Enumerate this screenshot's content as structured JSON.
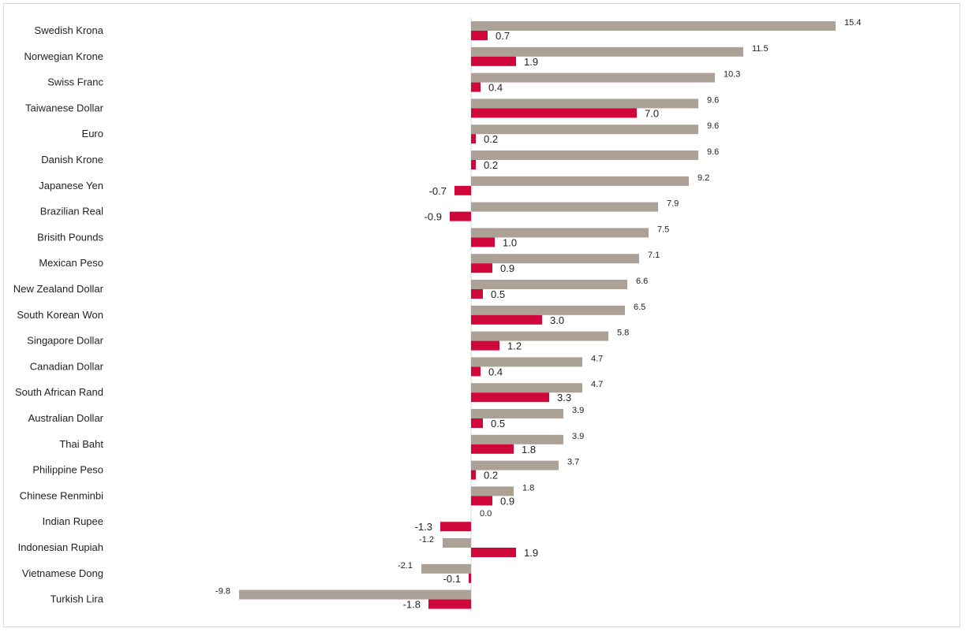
{
  "chart_data": {
    "type": "bar",
    "orientation": "horizontal",
    "title": "",
    "xlabel": "",
    "ylabel": "",
    "grid": false,
    "legend": "none",
    "xlim": [
      -9.8,
      15.4
    ],
    "categories": [
      "Swedish Krona",
      "Norwegian Krone",
      "Swiss Franc",
      "Taiwanese Dollar",
      "Euro",
      "Danish Krone",
      "Japanese Yen",
      "Brazilian Real",
      "Brisith Pounds",
      "Mexican Peso",
      "New Zealand Dollar",
      "South Korean Won",
      "Singapore Dollar",
      "Canadian Dollar",
      "South African Rand",
      "Australian Dollar",
      "Thai Baht",
      "Philippine Peso",
      "Chinese Renminbi",
      "Indian Rupee",
      "Indonesian Rupiah",
      "Vietnamese Dong",
      "Turkish Lira"
    ],
    "series": [
      {
        "color": "#aca196",
        "values": [
          15.4,
          11.5,
          10.3,
          9.6,
          9.6,
          9.6,
          9.2,
          7.9,
          7.5,
          7.1,
          6.6,
          6.5,
          5.8,
          4.7,
          4.7,
          3.9,
          3.9,
          3.7,
          1.8,
          0.0,
          -1.2,
          -2.1,
          -9.8
        ],
        "labels": [
          "15.4",
          "11.5",
          "10.3",
          "9.6",
          "9.6",
          "9.6",
          "9.2",
          "7.9",
          "7.5",
          "7.1",
          "6.6",
          "6.5",
          "5.8",
          "4.7",
          "4.7",
          "3.9",
          "3.9",
          "3.7",
          "1.8",
          "0.0",
          "-1.2",
          "-2.1",
          "-9.8"
        ]
      },
      {
        "color": "#d0073a",
        "values": [
          0.7,
          1.9,
          0.4,
          7.0,
          0.2,
          0.2,
          -0.7,
          -0.9,
          1.0,
          0.9,
          0.5,
          3.0,
          1.2,
          0.4,
          3.3,
          0.5,
          1.8,
          0.2,
          0.9,
          -1.3,
          1.9,
          -0.1,
          -1.8
        ],
        "labels": [
          "0.7",
          "1.9",
          "0.4",
          "7.0",
          "0.2",
          "0.2",
          "-0.7",
          "-0.9",
          "1.0",
          "0.9",
          "0.5",
          "3.0",
          "1.2",
          "0.4",
          "3.3",
          "0.5",
          "1.8",
          "0.2",
          "0.9",
          "-1.3",
          "1.9",
          "-0.1",
          "-1.8"
        ]
      }
    ],
    "colors": {
      "axis": "#d9d9d9",
      "text": "#222222"
    }
  }
}
